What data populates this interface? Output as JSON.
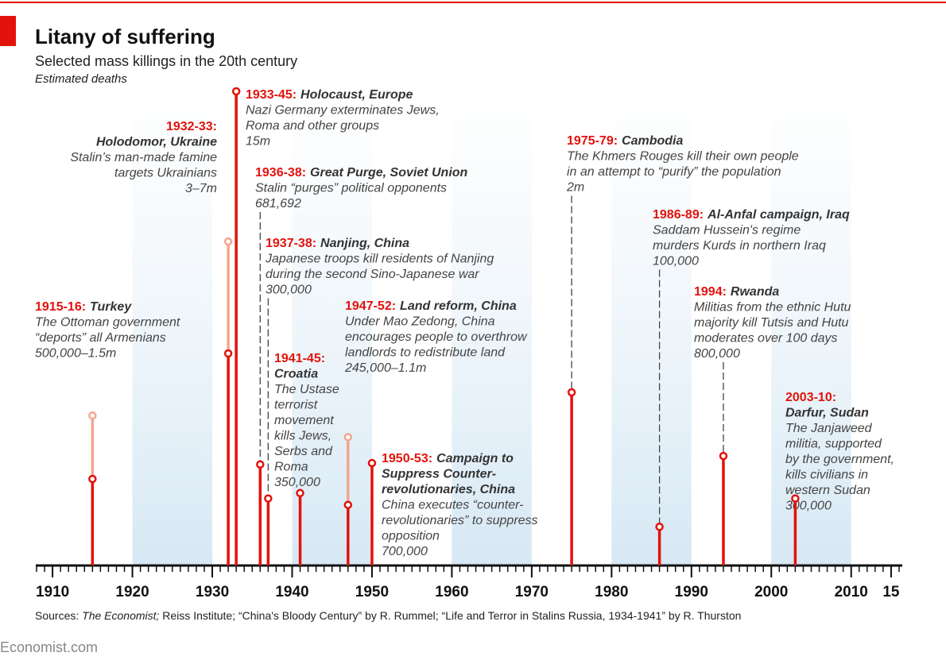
{
  "chart_data": {
    "type": "timeline",
    "title": "Litany of suffering",
    "subtitle": "Selected mass killings in the 20th century",
    "y_label": "Estimated deaths",
    "yscale": "sqrt",
    "color": "#e3120b",
    "range_color": "#f2a68d",
    "xlim": [
      1907.9,
      2016.4
    ],
    "xticks": [
      1910,
      1920,
      1930,
      1940,
      1950,
      1960,
      1970,
      1980,
      1990,
      2000,
      2010,
      {
        "value": 2015,
        "label": "15"
      }
    ],
    "xminor_step": 1,
    "events": [
      {
        "x": 1915,
        "year_label": "1915-16:",
        "title": [
          "Turkey"
        ],
        "description": [
          "The Ottoman government",
          "“deports” all Armenians"
        ],
        "deaths": [
          500000,
          1500000
        ],
        "deaths_label": "500,000–1.5m"
      },
      {
        "x": 1932,
        "year_label": "1932-33:",
        "title": [
          "Holodomor, Ukraine"
        ],
        "description": [
          "Stalin’s man-made famine",
          "targets Ukrainians"
        ],
        "deaths": [
          3000000,
          7000000
        ],
        "deaths_label": "3–7m"
      },
      {
        "x": 1933,
        "year_label": "1933-45:",
        "title": [
          "Holocaust, Europe"
        ],
        "description": [
          "Nazi Germany exterminates Jews,",
          "Roma and other groups"
        ],
        "deaths": [
          15000000
        ],
        "deaths_label": "15m"
      },
      {
        "x": 1936,
        "year_label": "1936-38:",
        "title": [
          "Great Purge, Soviet Union"
        ],
        "description": [
          "Stalin “purges” political opponents"
        ],
        "deaths": [
          681692
        ],
        "deaths_label": "681,692"
      },
      {
        "x": 1937,
        "year_label": "1937-38:",
        "title": [
          "Nanjing, China"
        ],
        "description": [
          "Japanese troops kill residents of Nanjing",
          "during the second Sino-Japanese war"
        ],
        "deaths": [
          300000
        ],
        "deaths_label": "300,000"
      },
      {
        "x": 1941,
        "year_label": "1941-45:",
        "title": [
          "Croatia"
        ],
        "description": [
          "The Ustase",
          "terrorist",
          "movement",
          "kills Jews,",
          "Serbs and",
          "Roma"
        ],
        "deaths": [
          350000
        ],
        "deaths_label": "350,000"
      },
      {
        "x": 1947,
        "year_label": "1947-52:",
        "title": [
          "Land reform, China"
        ],
        "description": [
          "Under Mao Zedong, China",
          "encourages people to overthrow",
          "landlords to redistribute land"
        ],
        "deaths": [
          245000,
          1100000
        ],
        "deaths_label": "245,000–1.1m"
      },
      {
        "x": 1950,
        "year_label": "1950-53:",
        "title": [
          "Campaign to",
          "Suppress Counter-",
          "revolutionaries, China"
        ],
        "description": [
          "China executes “counter-",
          "revolutionaries” to suppress",
          "opposition"
        ],
        "deaths": [
          700000
        ],
        "deaths_label": "700,000"
      },
      {
        "x": 1975,
        "year_label": "1975-79:",
        "title": [
          "Cambodia"
        ],
        "description": [
          "The Khmers Rouges kill their own people",
          "in an attempt to “purify” the population"
        ],
        "deaths": [
          2000000
        ],
        "deaths_label": "2m"
      },
      {
        "x": 1986,
        "year_label": "1986-89:",
        "title": [
          "Al-Anfal campaign, Iraq"
        ],
        "description": [
          "Saddam Hussein's regime",
          "murders Kurds in northern Iraq"
        ],
        "deaths": [
          100000
        ],
        "deaths_label": "100,000"
      },
      {
        "x": 1994,
        "year_label": "1994:",
        "title": [
          "Rwanda"
        ],
        "description": [
          "Militias from the ethnic Hutu",
          "majority kill Tutsis and Hutu",
          "moderates over 100 days"
        ],
        "deaths": [
          800000
        ],
        "deaths_label": "800,000"
      },
      {
        "x": 2003,
        "year_label": "2003-10:",
        "title": [
          "Darfur, Sudan"
        ],
        "description": [
          "The Janjaweed",
          "militia, supported",
          "by the government,",
          "kills civilians in",
          "western Sudan"
        ],
        "deaths": [
          300000
        ],
        "deaths_label": "300,000"
      }
    ],
    "sources_label": "Sources:",
    "sources_italic": "The Economist;",
    "sources_rest": "Reiss Institute; “China's Bloody Century” by R. Rummel; “Life and Terror in Stalins Russia, 1934-1941” by R. Thurston",
    "brand": "Economist.com"
  }
}
